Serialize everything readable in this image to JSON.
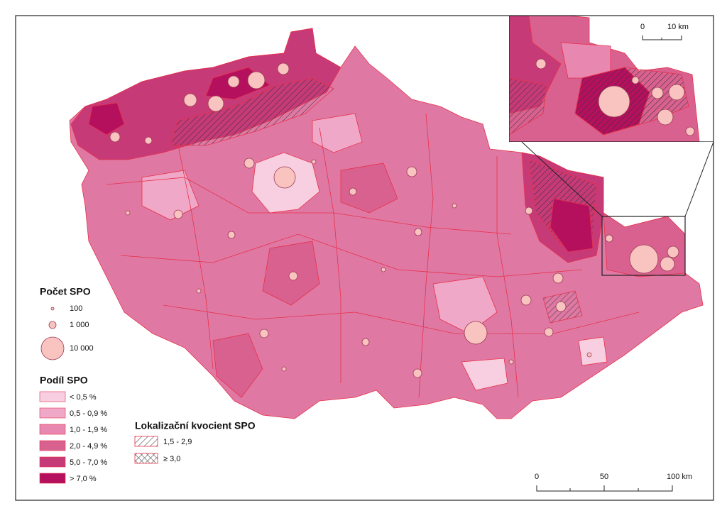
{
  "legend": {
    "count": {
      "title": "Počet SPO",
      "items": [
        "100",
        "1 000",
        "10 000"
      ]
    },
    "share": {
      "title": "Podíl SPO",
      "items": [
        {
          "label": "< 0,5 %",
          "color": "#f7cfe0"
        },
        {
          "label": "0,5 - 0,9 %",
          "color": "#f0a8c8"
        },
        {
          "label": "1,0 - 1,9 %",
          "color": "#e887b0"
        },
        {
          "label": "2,0 - 4,9 %",
          "color": "#d9618f"
        },
        {
          "label": "5,0 - 7,0 %",
          "color": "#c73a78"
        },
        {
          "label": "> 7,0 %",
          "color": "#b5105e"
        }
      ]
    },
    "quotient": {
      "title": "Lokalizační kvocient SPO",
      "items": [
        "1,5 - 2,9",
        "≥ 3,0"
      ]
    }
  },
  "scale": [
    "0",
    "50",
    "100 km"
  ],
  "inset_scale": [
    "0",
    "10 km"
  ]
}
